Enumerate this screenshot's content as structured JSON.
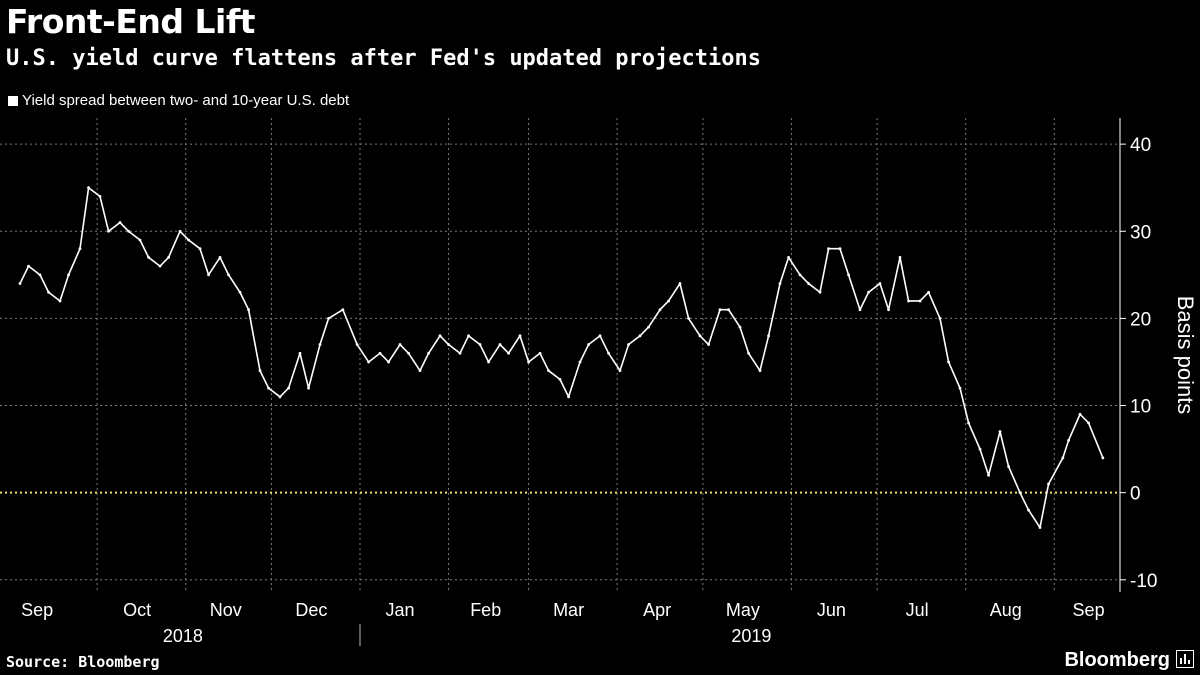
{
  "title": "Front-End Lift",
  "subtitle": "U.S. yield curve flattens after Fed's updated projections",
  "source": "Source: Bloomberg",
  "brand": "Bloomberg",
  "brand_icon": "chart-bars-icon",
  "colors": {
    "background": "#000000",
    "series": "#ffffff",
    "zero_line": "#f3e26a",
    "grid": "#7a7a7a"
  },
  "chart_data": {
    "type": "line",
    "legend": "Yield spread between two- and 10-year U.S. debt",
    "legend_position": "top-left",
    "ylabel": "Basis points",
    "ylim": [
      -10,
      40
    ],
    "yticks": [
      -10,
      0,
      10,
      20,
      30,
      40
    ],
    "yaxis_side": "right",
    "grid": true,
    "reference_line": 0,
    "months": [
      "Sep",
      "Oct",
      "Nov",
      "Dec",
      "Jan",
      "Feb",
      "Mar",
      "Apr",
      "May",
      "Jun",
      "Jul",
      "Aug",
      "Sep"
    ],
    "years": [
      "2018",
      "2019"
    ],
    "series": [
      {
        "x": [
          "2018-09-04",
          "2018-09-07",
          "2018-09-11",
          "2018-09-14",
          "2018-09-18",
          "2018-09-21",
          "2018-09-25",
          "2018-09-28",
          "2018-10-02",
          "2018-10-05",
          "2018-10-09",
          "2018-10-12",
          "2018-10-16",
          "2018-10-19",
          "2018-10-23",
          "2018-10-26",
          "2018-10-30",
          "2018-11-02",
          "2018-11-06",
          "2018-11-09",
          "2018-11-13",
          "2018-11-16",
          "2018-11-20",
          "2018-11-23",
          "2018-11-27",
          "2018-11-30",
          "2018-12-04",
          "2018-12-07",
          "2018-12-11",
          "2018-12-14",
          "2018-12-18",
          "2018-12-21",
          "2018-12-26",
          "2018-12-31",
          "2019-01-04",
          "2019-01-08",
          "2019-01-11",
          "2019-01-15",
          "2019-01-18",
          "2019-01-22",
          "2019-01-25",
          "2019-01-29",
          "2019-02-01",
          "2019-02-05",
          "2019-02-08",
          "2019-02-12",
          "2019-02-15",
          "2019-02-19",
          "2019-02-22",
          "2019-02-26",
          "2019-03-01",
          "2019-03-05",
          "2019-03-08",
          "2019-03-12",
          "2019-03-15",
          "2019-03-19",
          "2019-03-22",
          "2019-03-26",
          "2019-03-29",
          "2019-04-02",
          "2019-04-05",
          "2019-04-09",
          "2019-04-12",
          "2019-04-16",
          "2019-04-19",
          "2019-04-23",
          "2019-04-26",
          "2019-04-30",
          "2019-05-03",
          "2019-05-07",
          "2019-05-10",
          "2019-05-14",
          "2019-05-17",
          "2019-05-21",
          "2019-05-24",
          "2019-05-28",
          "2019-05-31",
          "2019-06-04",
          "2019-06-07",
          "2019-06-11",
          "2019-06-14",
          "2019-06-18",
          "2019-06-21",
          "2019-06-25",
          "2019-06-28",
          "2019-07-02",
          "2019-07-05",
          "2019-07-09",
          "2019-07-12",
          "2019-07-16",
          "2019-07-19",
          "2019-07-23",
          "2019-07-26",
          "2019-07-30",
          "2019-08-02",
          "2019-08-06",
          "2019-08-09",
          "2019-08-13",
          "2019-08-16",
          "2019-08-20",
          "2019-08-23",
          "2019-08-27",
          "2019-08-30",
          "2019-09-04",
          "2019-09-06",
          "2019-09-10",
          "2019-09-13",
          "2019-09-18"
        ],
        "values": [
          24,
          26,
          25,
          23,
          22,
          25,
          28,
          35,
          34,
          30,
          31,
          30,
          29,
          27,
          26,
          27,
          30,
          29,
          28,
          25,
          27,
          25,
          23,
          21,
          14,
          12,
          11,
          12,
          16,
          12,
          17,
          20,
          21,
          17,
          15,
          16,
          15,
          17,
          16,
          14,
          16,
          18,
          17,
          16,
          18,
          17,
          15,
          17,
          16,
          18,
          15,
          16,
          14,
          13,
          11,
          15,
          17,
          18,
          16,
          14,
          17,
          18,
          19,
          21,
          22,
          24,
          20,
          18,
          17,
          21,
          21,
          19,
          16,
          14,
          18,
          24,
          27,
          25,
          24,
          23,
          28,
          28,
          25,
          21,
          23,
          24,
          21,
          27,
          22,
          22,
          23,
          20,
          15,
          12,
          8,
          5,
          2,
          7,
          3,
          0,
          -2,
          -4,
          1,
          4,
          6,
          9,
          8,
          4
        ]
      }
    ]
  }
}
